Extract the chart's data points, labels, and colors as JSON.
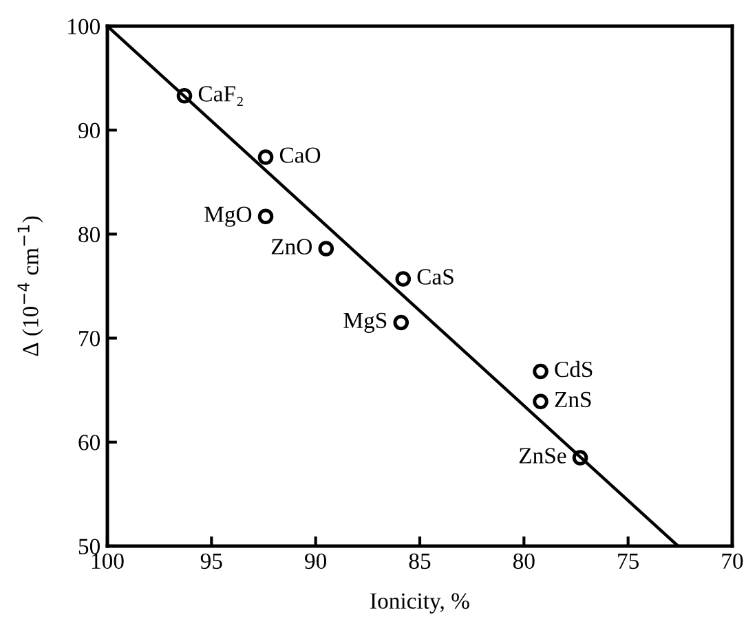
{
  "chart_data": {
    "type": "scatter",
    "xlabel": "Ionicity, %",
    "ylabel": "Δ (10$^{−4}$ cm$^{−1}$)",
    "xlim": [
      100,
      70
    ],
    "xticks": [
      100,
      95,
      90,
      85,
      80,
      75,
      70
    ],
    "ylim": [
      50,
      100
    ],
    "yticks": [
      50,
      60,
      70,
      80,
      90,
      100
    ],
    "grid": false,
    "legend": false,
    "series": [
      {
        "marker": "circle",
        "color": "#000000",
        "x": [
          96.3,
          92.4,
          92.4,
          89.5,
          85.8,
          85.9,
          79.2,
          79.2,
          77.3
        ],
        "values": [
          93.3,
          87.4,
          81.7,
          78.6,
          75.7,
          71.5,
          66.8,
          63.9,
          58.5
        ]
      },
      {
        "type": "line",
        "marker": "none",
        "color": "#000000",
        "line_style": "solid",
        "x": [
          100,
          72.6
        ],
        "values": [
          100,
          50
        ]
      }
    ],
    "annotations": [
      {
        "text": "CaF₂",
        "x": 96.3,
        "y": 93.3
      },
      {
        "text": "CaO",
        "x": 92.4,
        "y": 87.4
      },
      {
        "text": "MgO",
        "x": 92.4,
        "y": 81.7
      },
      {
        "text": "ZnO",
        "x": 89.5,
        "y": 78.6
      },
      {
        "text": "CaS",
        "x": 85.8,
        "y": 75.7
      },
      {
        "text": "MgS",
        "x": 85.9,
        "y": 71.5
      },
      {
        "text": "CdS",
        "x": 79.2,
        "y": 66.8
      },
      {
        "text": "ZnS",
        "x": 79.2,
        "y": 63.9
      },
      {
        "text": "ZnSe",
        "x": 77.3,
        "y": 58.5
      }
    ]
  }
}
